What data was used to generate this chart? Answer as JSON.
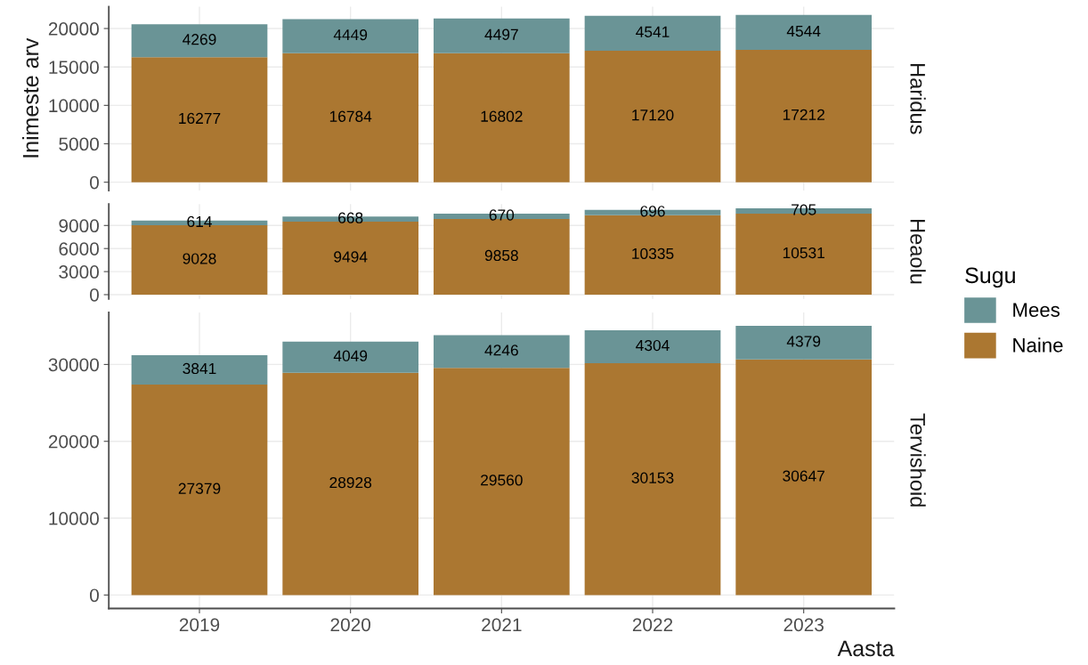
{
  "chart_data": [
    {
      "type": "bar",
      "annotations": [
        "Haridus"
      ],
      "ylabel": "Inimeste arv",
      "categories": [
        "2019",
        "2020",
        "2021",
        "2022",
        "2023"
      ],
      "stacked": true,
      "data_labels": true,
      "grid": true,
      "tick_labels": "y",
      "legend": "right",
      "legend_title": "Sugu",
      "ylim": [
        -1088,
        22844
      ],
      "yticks": [
        0,
        5000,
        10000,
        15000,
        20000
      ],
      "series": [
        {
          "name": "Naine",
          "color": "#ab7731",
          "values": [
            16277,
            16784,
            16802,
            17120,
            17212
          ]
        },
        {
          "name": "Mees",
          "color": "#6a9496",
          "values": [
            4269,
            4449,
            4497,
            4541,
            4544
          ]
        }
      ]
    },
    {
      "type": "bar",
      "annotations": [
        "Heaolu"
      ],
      "categories": [
        "2019",
        "2020",
        "2021",
        "2022",
        "2023"
      ],
      "stacked": true,
      "data_labels": true,
      "grid": true,
      "tick_labels": "y",
      "ylim": [
        -562,
        11798
      ],
      "yticks": [
        0,
        3000,
        6000,
        9000
      ],
      "series": [
        {
          "color": "#ab7731",
          "values": [
            9028,
            9494,
            9858,
            10335,
            10531
          ]
        },
        {
          "color": "#6a9496",
          "values": [
            614,
            668,
            670,
            696,
            705
          ]
        }
      ]
    },
    {
      "type": "bar",
      "annotations": [
        "Tervishoid"
      ],
      "xlabel": "Aasta",
      "categories": [
        "2019",
        "2020",
        "2021",
        "2022",
        "2023"
      ],
      "stacked": true,
      "data_labels": true,
      "grid": true,
      "ylim": [
        -1751,
        36777
      ],
      "yticks": [
        0,
        10000,
        20000,
        30000
      ],
      "series": [
        {
          "color": "#ab7731",
          "values": [
            27379,
            28928,
            29560,
            30153,
            30647
          ]
        },
        {
          "color": "#6a9496",
          "values": [
            3841,
            4049,
            4246,
            4304,
            4379
          ]
        }
      ]
    }
  ]
}
